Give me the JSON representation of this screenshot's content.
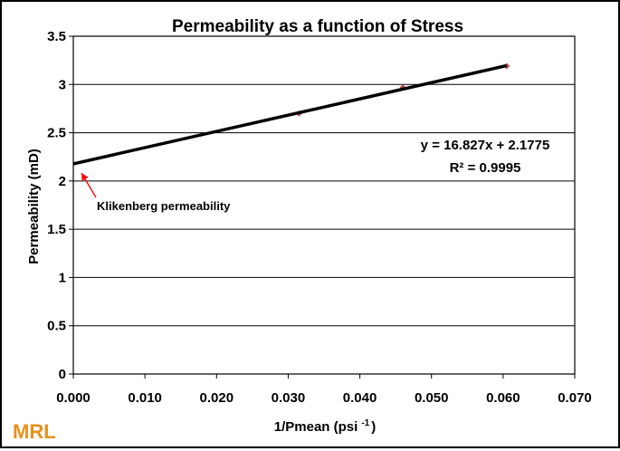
{
  "chart_data": {
    "type": "scatter",
    "title": "Permeability as a function of Stress",
    "xlabel": "1/Pmean (psi",
    "xlabel_superscript": "-1",
    "xlabel_suffix": ")",
    "ylabel": "Permeability (mD)",
    "xlim": [
      0,
      0.07
    ],
    "ylim": [
      0,
      3.5
    ],
    "x_ticks": [
      "0.000",
      "0.010",
      "0.020",
      "0.030",
      "0.040",
      "0.050",
      "0.060",
      "0.070"
    ],
    "y_ticks": [
      "0",
      "0.5",
      "1",
      "1.5",
      "2",
      "2.5",
      "3",
      "3.5"
    ],
    "grid": "horizontal",
    "series": [
      {
        "x": [
          0.0315,
          0.046,
          0.0605
        ],
        "y": [
          2.7,
          2.97,
          3.19
        ],
        "color": "#c0504d"
      }
    ],
    "trendline": {
      "slope": 16.827,
      "intercept": 2.1775,
      "x_range": [
        0,
        0.0605
      ],
      "color": "#000000",
      "equation": "y = 16.827x + 2.1775",
      "r_squared": "R² = 0.9995"
    },
    "annotations": [
      {
        "text": "Klikenberg permeability",
        "arrow_to": [
          0,
          2.1775
        ],
        "arrow_color": "#ff0000"
      }
    ]
  },
  "logo": {
    "text": "MRL",
    "color": "#e8901c"
  }
}
